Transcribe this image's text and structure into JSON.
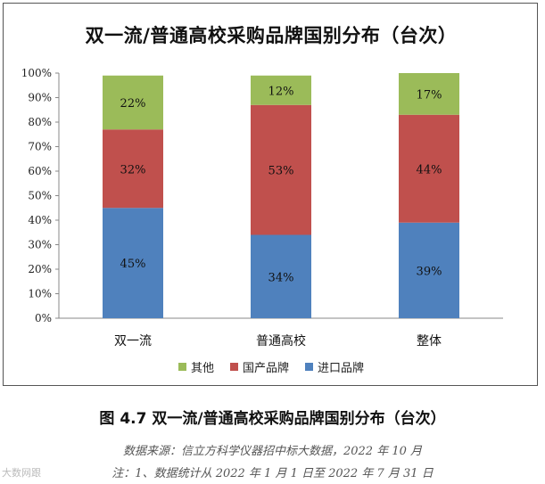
{
  "chart_data": {
    "type": "bar",
    "stacked": true,
    "title": "双一流/普通高校采购品牌国别分布（台次）",
    "categories": [
      "双一流",
      "普通高校",
      "整体"
    ],
    "series": [
      {
        "name": "进口品牌",
        "values": [
          45,
          34,
          39
        ],
        "color": "#4f81bd"
      },
      {
        "name": "国产品牌",
        "values": [
          32,
          53,
          44
        ],
        "color": "#c0504d"
      },
      {
        "name": "其他",
        "values": [
          22,
          12,
          17
        ],
        "color": "#9bbb59"
      }
    ],
    "ylim": [
      0,
      100
    ],
    "yticks": [
      "0%",
      "10%",
      "20%",
      "30%",
      "40%",
      "50%",
      "60%",
      "70%",
      "80%",
      "90%",
      "100%"
    ],
    "value_suffix": "%",
    "legend_order": [
      "其他",
      "国产品牌",
      "进口品牌"
    ],
    "legend_position": "bottom",
    "grid": false
  },
  "caption": "图 4.7  双一流/普通高校采购品牌国别分布（台次）",
  "source_note": "数据来源：信立方科学仪器招中标大数据，2022 年 10 月",
  "footnote": "注：1、数据统计从 2022 年 1 月 1 日至 2022 年 7 月 31 日",
  "watermark": "大数网跟"
}
